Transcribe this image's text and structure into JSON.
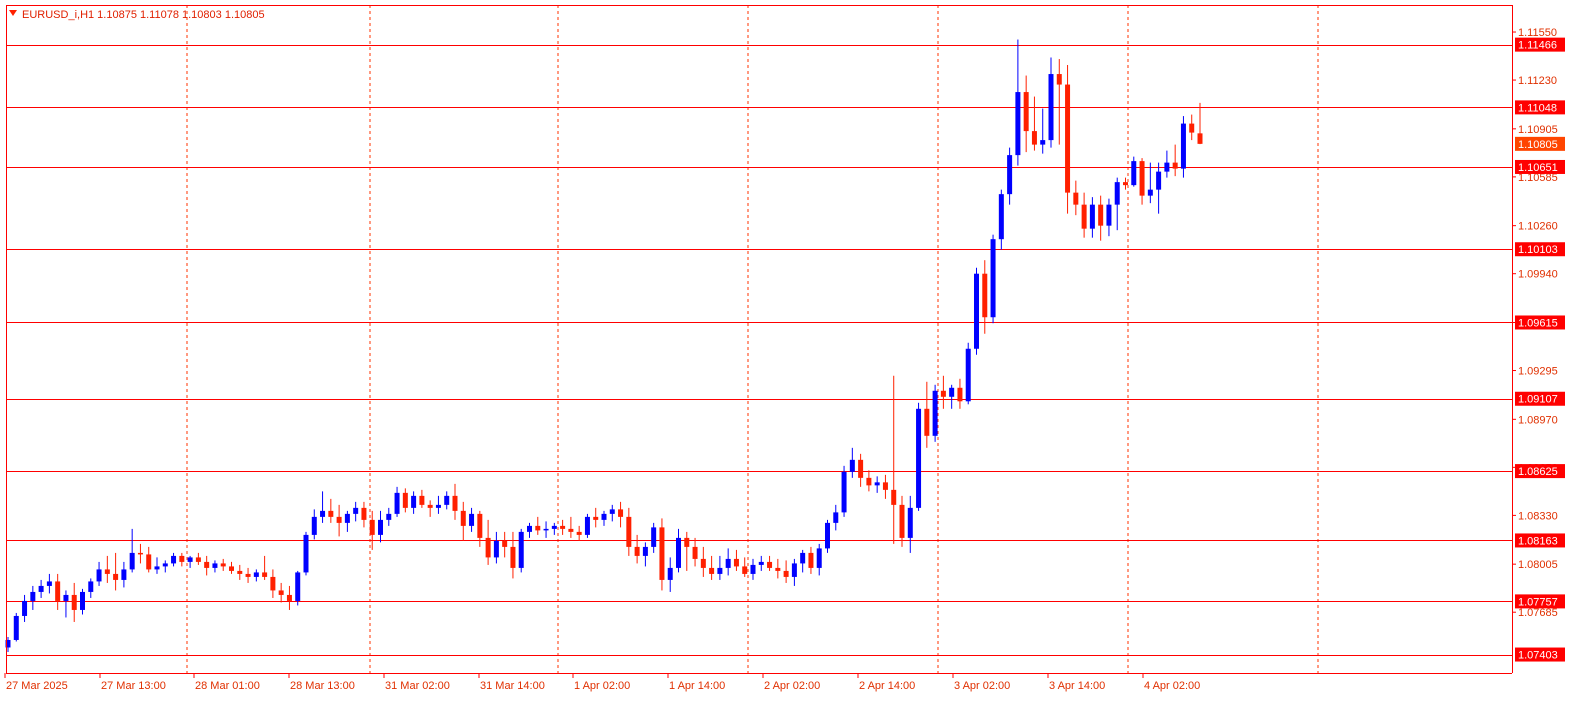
{
  "header": {
    "symbol_line": "EURUSD_i,H1  1.10875 1.11078 1.10803 1.10805",
    "dropdown_icon": "triangle-down-icon"
  },
  "colors": {
    "bull": "#0000ff",
    "bear": "#ff2000",
    "level_line": "#ff0000",
    "grid": "#ff3300",
    "axis": "#ff0000",
    "label_fill": "#ff0000",
    "label_text": "#ffffff",
    "current_fill": "#ff4500",
    "tick_text": "#e03000"
  },
  "chart_data": {
    "type": "candlestick",
    "symbol": "EURUSD_i",
    "timeframe": "H1",
    "current": {
      "open": 1.10875,
      "high": 1.11078,
      "low": 1.10803,
      "close": 1.10805
    },
    "ylim": [
      1.0728,
      1.1173
    ],
    "y_ticks": [
      "1.11550",
      "1.11230",
      "1.10905",
      "1.10585",
      "1.10260",
      "1.09940",
      "1.09615",
      "1.09295",
      "1.08970",
      "1.08650",
      "1.08330",
      "1.08005",
      "1.07685"
    ],
    "x_labels": [
      "27 Mar 2025",
      "27 Mar 13:00",
      "28 Mar 01:00",
      "28 Mar 13:00",
      "31 Mar 02:00",
      "31 Mar 14:00",
      "1 Apr 02:00",
      "1 Apr 14:00",
      "2 Apr 02:00",
      "2 Apr 14:00",
      "3 Apr 02:00",
      "3 Apr 14:00",
      "4 Apr 02:00"
    ],
    "day_separators": [
      "28 Mar",
      "31 Mar",
      "1 Apr",
      "2 Apr",
      "3 Apr",
      "4 Apr",
      "7 Apr"
    ],
    "horizontal_levels": [
      "1.11466",
      "1.11048",
      "1.10651",
      "1.10103",
      "1.09615",
      "1.09107",
      "1.08625",
      "1.08163",
      "1.07757",
      "1.07403"
    ],
    "price_label": "1.10805",
    "grid": true,
    "candles": [
      [
        1.0745,
        1.0752,
        1.0742,
        1.075
      ],
      [
        1.075,
        1.0768,
        1.0749,
        1.0766
      ],
      [
        1.0766,
        1.078,
        1.0762,
        1.0776
      ],
      [
        1.0776,
        1.0786,
        1.077,
        1.0782
      ],
      [
        1.0782,
        1.079,
        1.0778,
        1.0786
      ],
      [
        1.0786,
        1.0794,
        1.0781,
        1.0789
      ],
      [
        1.0789,
        1.0794,
        1.077,
        1.0776
      ],
      [
        1.0776,
        1.0783,
        1.0765,
        1.078
      ],
      [
        1.078,
        1.0788,
        1.0762,
        1.077
      ],
      [
        1.077,
        1.0784,
        1.0767,
        1.0782
      ],
      [
        1.0782,
        1.0791,
        1.0778,
        1.0789
      ],
      [
        1.0789,
        1.0802,
        1.0786,
        1.0797
      ],
      [
        1.0797,
        1.0806,
        1.0788,
        1.0794
      ],
      [
        1.0794,
        1.0808,
        1.0783,
        1.079
      ],
      [
        1.079,
        1.0802,
        1.0785,
        1.0797
      ],
      [
        1.0797,
        1.0824,
        1.0795,
        1.0808
      ],
      [
        1.0808,
        1.0814,
        1.0801,
        1.0807
      ],
      [
        1.0807,
        1.0812,
        1.0795,
        1.0797
      ],
      [
        1.0797,
        1.0805,
        1.0794,
        1.0799
      ],
      [
        1.0799,
        1.0803,
        1.0795,
        1.0801
      ],
      [
        1.0801,
        1.0808,
        1.0799,
        1.0806
      ],
      [
        1.0806,
        1.0808,
        1.0799,
        1.0802
      ],
      [
        1.0802,
        1.0806,
        1.0798,
        1.0805
      ],
      [
        1.0805,
        1.0808,
        1.08,
        1.0802
      ],
      [
        1.0802,
        1.0806,
        1.0793,
        1.0798
      ],
      [
        1.0798,
        1.0803,
        1.0795,
        1.0801
      ],
      [
        1.0801,
        1.0804,
        1.0796,
        1.0799
      ],
      [
        1.0799,
        1.0802,
        1.0794,
        1.0796
      ],
      [
        1.0796,
        1.08,
        1.079,
        1.0794
      ],
      [
        1.0794,
        1.0798,
        1.0788,
        1.0792
      ],
      [
        1.0792,
        1.0797,
        1.0789,
        1.0795
      ],
      [
        1.0795,
        1.0806,
        1.079,
        1.0792
      ],
      [
        1.0792,
        1.0797,
        1.0778,
        1.0783
      ],
      [
        1.0783,
        1.0788,
        1.0775,
        1.078
      ],
      [
        1.078,
        1.0786,
        1.077,
        1.0776
      ],
      [
        1.0776,
        1.0796,
        1.0773,
        1.0795
      ],
      [
        1.0795,
        1.0822,
        1.0793,
        1.082
      ],
      [
        1.082,
        1.0837,
        1.0817,
        1.0832
      ],
      [
        1.0832,
        1.0849,
        1.0828,
        1.0836
      ],
      [
        1.0836,
        1.0844,
        1.0828,
        1.0832
      ],
      [
        1.0832,
        1.084,
        1.0819,
        1.0828
      ],
      [
        1.0828,
        1.0836,
        1.0822,
        1.0834
      ],
      [
        1.0834,
        1.0842,
        1.0829,
        1.0838
      ],
      [
        1.0838,
        1.0842,
        1.0825,
        1.083
      ],
      [
        1.083,
        1.0836,
        1.081,
        1.082
      ],
      [
        1.082,
        1.0836,
        1.0815,
        1.083
      ],
      [
        1.083,
        1.0838,
        1.0826,
        1.0834
      ],
      [
        1.0834,
        1.0852,
        1.0832,
        1.0848
      ],
      [
        1.0848,
        1.0851,
        1.0835,
        1.0838
      ],
      [
        1.0838,
        1.0849,
        1.0834,
        1.0846
      ],
      [
        1.0846,
        1.085,
        1.0838,
        1.084
      ],
      [
        1.084,
        1.0843,
        1.0832,
        1.0838
      ],
      [
        1.0838,
        1.0846,
        1.0834,
        1.084
      ],
      [
        1.084,
        1.0849,
        1.0837,
        1.0846
      ],
      [
        1.0846,
        1.0854,
        1.083,
        1.0836
      ],
      [
        1.0836,
        1.0842,
        1.0816,
        1.0826
      ],
      [
        1.0826,
        1.0838,
        1.0822,
        1.0834
      ],
      [
        1.0834,
        1.0836,
        1.0812,
        1.0818
      ],
      [
        1.0818,
        1.083,
        1.08,
        1.0805
      ],
      [
        1.0805,
        1.0822,
        1.0801,
        1.0816
      ],
      [
        1.0816,
        1.0822,
        1.0805,
        1.0812
      ],
      [
        1.0812,
        1.0822,
        1.0791,
        1.0798
      ],
      [
        1.0798,
        1.0824,
        1.0795,
        1.0822
      ],
      [
        1.0822,
        1.0828,
        1.0818,
        1.0826
      ],
      [
        1.0826,
        1.0832,
        1.082,
        1.0823
      ],
      [
        1.0823,
        1.0829,
        1.0818,
        1.0824
      ],
      [
        1.0824,
        1.0828,
        1.082,
        1.0826
      ],
      [
        1.0826,
        1.083,
        1.082,
        1.0824
      ],
      [
        1.0824,
        1.0832,
        1.0818,
        1.0822
      ],
      [
        1.0822,
        1.0826,
        1.0816,
        1.082
      ],
      [
        1.082,
        1.0834,
        1.0818,
        1.0832
      ],
      [
        1.0832,
        1.0838,
        1.0825,
        1.083
      ],
      [
        1.083,
        1.0836,
        1.0826,
        1.0834
      ],
      [
        1.0834,
        1.084,
        1.0829,
        1.0837
      ],
      [
        1.0837,
        1.0842,
        1.0825,
        1.0832
      ],
      [
        1.0832,
        1.0838,
        1.0806,
        1.0812
      ],
      [
        1.0812,
        1.082,
        1.0801,
        1.0806
      ],
      [
        1.0806,
        1.0815,
        1.0799,
        1.0812
      ],
      [
        1.0812,
        1.0828,
        1.0808,
        1.0825
      ],
      [
        1.0825,
        1.0831,
        1.0783,
        1.079
      ],
      [
        1.079,
        1.0805,
        1.0782,
        1.0798
      ],
      [
        1.0798,
        1.0824,
        1.0795,
        1.0818
      ],
      [
        1.0818,
        1.0822,
        1.0796,
        1.0812
      ],
      [
        1.0812,
        1.0818,
        1.0799,
        1.0804
      ],
      [
        1.0804,
        1.0812,
        1.0792,
        1.0798
      ],
      [
        1.0798,
        1.0806,
        1.079,
        1.0794
      ],
      [
        1.0794,
        1.0806,
        1.079,
        1.0798
      ],
      [
        1.0798,
        1.0811,
        1.0793,
        1.0804
      ],
      [
        1.0804,
        1.081,
        1.0796,
        1.0799
      ],
      [
        1.0799,
        1.0805,
        1.0792,
        1.0794
      ],
      [
        1.0794,
        1.0804,
        1.079,
        1.08
      ],
      [
        1.08,
        1.0806,
        1.0796,
        1.0802
      ],
      [
        1.0802,
        1.0806,
        1.0796,
        1.0798
      ],
      [
        1.0798,
        1.0804,
        1.0791,
        1.0796
      ],
      [
        1.0796,
        1.0803,
        1.0788,
        1.0792
      ],
      [
        1.0792,
        1.0804,
        1.0786,
        1.0801
      ],
      [
        1.0801,
        1.081,
        1.0795,
        1.0808
      ],
      [
        1.0808,
        1.0812,
        1.0794,
        1.0798
      ],
      [
        1.0798,
        1.0814,
        1.0793,
        1.0811
      ],
      [
        1.0811,
        1.083,
        1.0808,
        1.0828
      ],
      [
        1.0828,
        1.084,
        1.0823,
        1.0835
      ],
      [
        1.0835,
        1.0866,
        1.0832,
        1.0862
      ],
      [
        1.0862,
        1.0878,
        1.0858,
        1.087
      ],
      [
        1.087,
        1.0874,
        1.0852,
        1.0858
      ],
      [
        1.0858,
        1.0863,
        1.0849,
        1.0853
      ],
      [
        1.0853,
        1.0859,
        1.0848,
        1.0855
      ],
      [
        1.0855,
        1.086,
        1.0844,
        1.085
      ],
      [
        1.085,
        1.0926,
        1.0814,
        1.084
      ],
      [
        1.084,
        1.0846,
        1.0812,
        1.0818
      ],
      [
        1.0818,
        1.0846,
        1.0808,
        1.0838
      ],
      [
        1.0838,
        1.0908,
        1.0836,
        1.0904
      ],
      [
        1.0904,
        1.0922,
        1.0878,
        1.0886
      ],
      [
        1.0886,
        1.092,
        1.0882,
        1.0916
      ],
      [
        1.0916,
        1.0926,
        1.0904,
        1.0912
      ],
      [
        1.0912,
        1.092,
        1.0904,
        1.0918
      ],
      [
        1.0918,
        1.0924,
        1.0904,
        1.0909
      ],
      [
        1.0909,
        1.0948,
        1.0907,
        1.0944
      ],
      [
        1.0944,
        1.0998,
        1.094,
        1.0994
      ],
      [
        1.0994,
        1.1003,
        1.0954,
        1.0965
      ],
      [
        1.0965,
        1.102,
        1.0961,
        1.1017
      ],
      [
        1.1017,
        1.105,
        1.101,
        1.1047
      ],
      [
        1.1047,
        1.1078,
        1.104,
        1.1073
      ],
      [
        1.1073,
        1.115,
        1.1066,
        1.1115
      ],
      [
        1.1115,
        1.1126,
        1.1075,
        1.1089
      ],
      [
        1.1089,
        1.1112,
        1.1076,
        1.108
      ],
      [
        1.108,
        1.1104,
        1.1074,
        1.1083
      ],
      [
        1.1083,
        1.1138,
        1.1078,
        1.1127
      ],
      [
        1.1127,
        1.1137,
        1.108,
        1.112
      ],
      [
        1.112,
        1.1133,
        1.1034,
        1.1048
      ],
      [
        1.1048,
        1.1056,
        1.1033,
        1.104
      ],
      [
        1.104,
        1.1048,
        1.1018,
        1.1024
      ],
      [
        1.1024,
        1.1045,
        1.1018,
        1.104
      ],
      [
        1.104,
        1.1046,
        1.1016,
        1.1026
      ],
      [
        1.1026,
        1.1044,
        1.1019,
        1.104
      ],
      [
        1.104,
        1.1058,
        1.1023,
        1.1055
      ],
      [
        1.1055,
        1.1058,
        1.105,
        1.1053
      ],
      [
        1.1053,
        1.1072,
        1.1052,
        1.1069
      ],
      [
        1.1069,
        1.1071,
        1.104,
        1.1046
      ],
      [
        1.1046,
        1.1068,
        1.1041,
        1.105
      ],
      [
        1.105,
        1.1068,
        1.1034,
        1.1062
      ],
      [
        1.1062,
        1.1076,
        1.1058,
        1.1068
      ],
      [
        1.1068,
        1.108,
        1.1059,
        1.1064
      ],
      [
        1.1064,
        1.1099,
        1.1058,
        1.1094
      ],
      [
        1.1094,
        1.11,
        1.1083,
        1.1088
      ],
      [
        1.10875,
        1.11078,
        1.10803,
        1.10805
      ]
    ]
  }
}
